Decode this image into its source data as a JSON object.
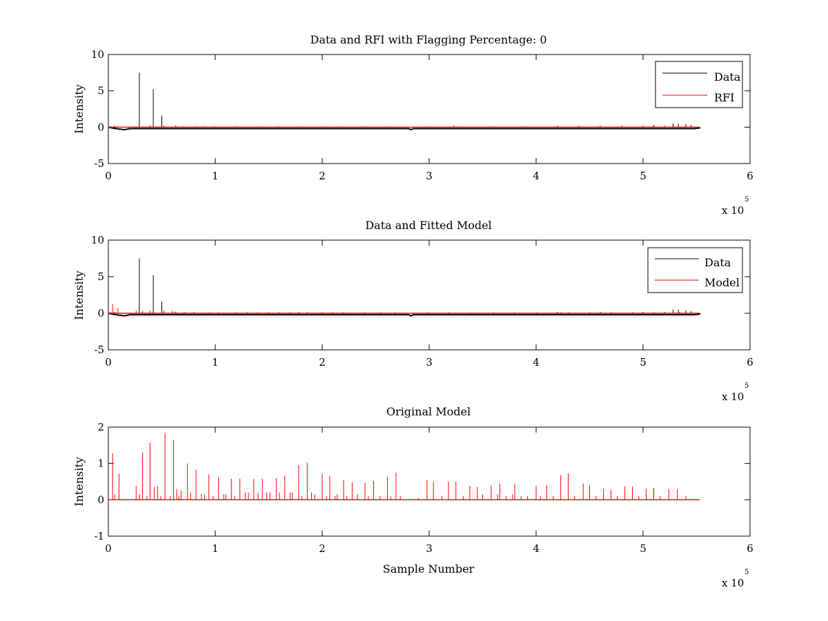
{
  "figure": {
    "background": "#ffffff"
  },
  "chart_data": [
    {
      "type": "line",
      "title": "Data and RFI with Flagging Percentage: 0",
      "xlabel": "",
      "ylabel": "Intensity",
      "xlim": [
        0,
        600000
      ],
      "ylim": [
        -5,
        10
      ],
      "xticks": [
        "0",
        "1",
        "2",
        "3",
        "4",
        "5",
        "6"
      ],
      "yticks": [
        "-5",
        "0",
        "5",
        "10"
      ],
      "xtick_values": [
        0,
        100000,
        200000,
        300000,
        400000,
        500000,
        600000
      ],
      "ytick_values": [
        -5,
        0,
        5,
        10
      ],
      "x_multiplier": {
        "base": "x 10",
        "exponent": "5"
      },
      "grid": false,
      "legend": {
        "position": "top-right",
        "entries": [
          {
            "label": "Data",
            "color": "#000000"
          },
          {
            "label": "RFI",
            "color": "#ff0000"
          }
        ]
      },
      "series": [
        {
          "name": "Data",
          "color": "#000000",
          "baseline": 0,
          "x_end": 553000,
          "dips": [
            [
              5000,
              -0.15
            ],
            [
              15000,
              -0.35
            ],
            [
              20000,
              -0.2
            ],
            [
              281000,
              -0.2
            ],
            [
              283000,
              -0.35
            ],
            [
              285000,
              -0.2
            ],
            [
              548000,
              -0.2
            ],
            [
              553000,
              -0.1
            ]
          ],
          "spikes": [
            [
              2000,
              0.15
            ],
            [
              6000,
              0.2
            ],
            [
              9000,
              0.1
            ],
            [
              29000,
              7.5
            ],
            [
              39000,
              0.2
            ],
            [
              42000,
              5.2
            ],
            [
              50000,
              1.6
            ],
            [
              52000,
              0.2
            ],
            [
              63000,
              0.2
            ],
            [
              70000,
              0.1
            ],
            [
              82000,
              0.1
            ],
            [
              90000,
              0.1
            ],
            [
              100000,
              0.1
            ],
            [
              120000,
              0.1
            ],
            [
              140000,
              0.1
            ],
            [
              160000,
              0.1
            ],
            [
              180000,
              0.1
            ],
            [
              200000,
              0.1
            ],
            [
              220000,
              0.1
            ],
            [
              240000,
              0.1
            ],
            [
              260000,
              0.1
            ],
            [
              300000,
              0.1
            ],
            [
              330000,
              0.1
            ],
            [
              360000,
              0.1
            ],
            [
              390000,
              0.1
            ],
            [
              420000,
              0.2
            ],
            [
              440000,
              0.2
            ],
            [
              460000,
              0.2
            ],
            [
              480000,
              0.2
            ],
            [
              500000,
              0.2
            ],
            [
              510000,
              0.3
            ],
            [
              520000,
              0.2
            ],
            [
              528000,
              0.5
            ],
            [
              533000,
              0.5
            ],
            [
              540000,
              0.4
            ],
            [
              545000,
              0.3
            ]
          ]
        },
        {
          "name": "RFI",
          "color": "#ff0000",
          "baseline": 0,
          "x_end": 553000,
          "spikes": [
            [
              323000,
              0.25
            ]
          ]
        }
      ]
    },
    {
      "type": "line",
      "title": "Data and Fitted Model",
      "xlabel": "",
      "ylabel": "Intensity",
      "xlim": [
        0,
        600000
      ],
      "ylim": [
        -5,
        10
      ],
      "xticks": [
        "0",
        "1",
        "2",
        "3",
        "4",
        "5",
        "6"
      ],
      "yticks": [
        "-5",
        "0",
        "5",
        "10"
      ],
      "xtick_values": [
        0,
        100000,
        200000,
        300000,
        400000,
        500000,
        600000
      ],
      "ytick_values": [
        -5,
        0,
        5,
        10
      ],
      "x_multiplier": {
        "base": "x 10",
        "exponent": "5"
      },
      "grid": false,
      "legend": {
        "position": "top-right",
        "entries": [
          {
            "label": "Data",
            "color": "#000000"
          },
          {
            "label": "Model",
            "color": "#ff0000"
          }
        ]
      },
      "series": [
        {
          "name": "Data",
          "color": "#000000",
          "baseline": 0,
          "x_end": 553000,
          "dips": [
            [
              5000,
              -0.15
            ],
            [
              15000,
              -0.35
            ],
            [
              20000,
              -0.2
            ],
            [
              281000,
              -0.2
            ],
            [
              283000,
              -0.35
            ],
            [
              285000,
              -0.2
            ],
            [
              548000,
              -0.2
            ],
            [
              553000,
              -0.1
            ]
          ],
          "spikes": [
            [
              2000,
              0.15
            ],
            [
              6000,
              0.2
            ],
            [
              9000,
              0.1
            ],
            [
              29000,
              7.5
            ],
            [
              39000,
              0.2
            ],
            [
              42000,
              5.2
            ],
            [
              50000,
              1.6
            ],
            [
              52000,
              0.2
            ],
            [
              63000,
              0.2
            ],
            [
              70000,
              0.1
            ],
            [
              90000,
              0.1
            ],
            [
              120000,
              0.1
            ],
            [
              160000,
              0.1
            ],
            [
              200000,
              0.1
            ],
            [
              240000,
              0.1
            ],
            [
              300000,
              0.1
            ],
            [
              360000,
              0.1
            ],
            [
              420000,
              0.2
            ],
            [
              460000,
              0.2
            ],
            [
              500000,
              0.2
            ],
            [
              520000,
              0.2
            ],
            [
              528000,
              0.5
            ],
            [
              533000,
              0.5
            ],
            [
              540000,
              0.4
            ],
            [
              545000,
              0.3
            ]
          ]
        },
        {
          "name": "Model",
          "color": "#ff0000",
          "baseline": 0,
          "x_end": 553000,
          "spikes": [
            [
              4000,
              1.25
            ],
            [
              9000,
              0.7
            ],
            [
              26000,
              0.35
            ],
            [
              32000,
              0.3
            ],
            [
              39000,
              0.35
            ],
            [
              52000,
              0.4
            ],
            [
              60000,
              0.35
            ],
            [
              72000,
              0.2
            ],
            [
              80000,
              0.2
            ],
            [
              95000,
              0.15
            ],
            [
              103000,
              0.15
            ],
            [
              118000,
              0.15
            ],
            [
              130000,
              0.15
            ],
            [
              140000,
              0.15
            ],
            [
              150000,
              0.15
            ],
            [
              160000,
              0.15
            ],
            [
              170000,
              0.15
            ],
            [
              178000,
              0.2
            ],
            [
              186000,
              0.2
            ],
            [
              200000,
              0.15
            ],
            [
              210000,
              0.15
            ],
            [
              220000,
              0.15
            ],
            [
              240000,
              0.15
            ],
            [
              255000,
              0.15
            ],
            [
              268000,
              0.15
            ],
            [
              298000,
              0.15
            ],
            [
              318000,
              0.15
            ],
            [
              340000,
              0.15
            ],
            [
              360000,
              0.15
            ],
            [
              380000,
              0.15
            ],
            [
              400000,
              0.15
            ],
            [
              423000,
              0.15
            ],
            [
              430000,
              0.15
            ],
            [
              450000,
              0.15
            ],
            [
              470000,
              0.15
            ],
            [
              490000,
              0.15
            ],
            [
              510000,
              0.15
            ],
            [
              528000,
              0.15
            ],
            [
              534000,
              0.15
            ]
          ]
        }
      ]
    },
    {
      "type": "line",
      "title": "Original Model",
      "xlabel": "Sample Number",
      "ylabel": "Intensity",
      "xlim": [
        0,
        600000
      ],
      "ylim": [
        -1,
        2
      ],
      "xticks": [
        "0",
        "1",
        "2",
        "3",
        "4",
        "5",
        "6"
      ],
      "yticks": [
        "-1",
        "0",
        "1",
        "2"
      ],
      "xtick_values": [
        0,
        100000,
        200000,
        300000,
        400000,
        500000,
        600000
      ],
      "ytick_values": [
        -1,
        0,
        1,
        2
      ],
      "x_multiplier": {
        "base": "x 10",
        "exponent": "5"
      },
      "grid": false,
      "legend": null,
      "series": [
        {
          "name": "",
          "color": "#ff0000",
          "baseline": 0,
          "x_end": 553000,
          "spikes": [
            [
              4000,
              1.28
            ],
            [
              6000,
              0.15
            ],
            [
              10000,
              0.72
            ],
            [
              26000,
              0.38
            ],
            [
              29000,
              0.15
            ],
            [
              32000,
              1.3
            ],
            [
              36000,
              0.1
            ],
            [
              39000,
              1.57
            ],
            [
              43000,
              0.35
            ],
            [
              46000,
              0.37
            ],
            [
              49000,
              0.1
            ],
            [
              53000,
              1.84
            ],
            [
              58000,
              0.1
            ],
            [
              61000,
              1.65
            ],
            [
              64000,
              0.3
            ],
            [
              66000,
              0.1
            ],
            [
              68000,
              0.26
            ],
            [
              74000,
              1.0
            ],
            [
              77000,
              0.2
            ],
            [
              82000,
              0.83
            ],
            [
              87000,
              0.15
            ],
            [
              90000,
              0.15
            ],
            [
              94000,
              0.7
            ],
            [
              98000,
              0.1
            ],
            [
              103000,
              0.62
            ],
            [
              108000,
              0.15
            ],
            [
              110000,
              0.15
            ],
            [
              115000,
              0.58
            ],
            [
              118000,
              0.1
            ],
            [
              123000,
              0.58
            ],
            [
              128000,
              0.2
            ],
            [
              131000,
              0.2
            ],
            [
              136000,
              0.57
            ],
            [
              140000,
              0.2
            ],
            [
              144000,
              0.58
            ],
            [
              148000,
              0.2
            ],
            [
              151000,
              0.2
            ],
            [
              157000,
              0.6
            ],
            [
              160000,
              0.2
            ],
            [
              165000,
              0.67
            ],
            [
              170000,
              0.2
            ],
            [
              172000,
              0.2
            ],
            [
              178000,
              0.95
            ],
            [
              181000,
              0.1
            ],
            [
              186000,
              1.02
            ],
            [
              190000,
              0.2
            ],
            [
              193000,
              0.15
            ],
            [
              200000,
              0.72
            ],
            [
              204000,
              0.1
            ],
            [
              207000,
              0.65
            ],
            [
              212000,
              0.1
            ],
            [
              214000,
              0.15
            ],
            [
              220000,
              0.55
            ],
            [
              223000,
              0.1
            ],
            [
              228000,
              0.48
            ],
            [
              233000,
              0.15
            ],
            [
              240000,
              0.47
            ],
            [
              243000,
              0.1
            ],
            [
              248000,
              0.52
            ],
            [
              254000,
              0.1
            ],
            [
              261000,
              0.63
            ],
            [
              264000,
              0.1
            ],
            [
              269000,
              0.75
            ],
            [
              273000,
              0.1
            ],
            [
              290000,
              0.05
            ],
            [
              298000,
              0.55
            ],
            [
              304000,
              0.5
            ],
            [
              312000,
              0.1
            ],
            [
              318000,
              0.5
            ],
            [
              325000,
              0.5
            ],
            [
              332000,
              0.1
            ],
            [
              338000,
              0.38
            ],
            [
              345000,
              0.35
            ],
            [
              350000,
              0.15
            ],
            [
              358000,
              0.4
            ],
            [
              364000,
              0.15
            ],
            [
              366000,
              0.45
            ],
            [
              372000,
              0.1
            ],
            [
              378000,
              0.15
            ],
            [
              380000,
              0.45
            ],
            [
              386000,
              0.1
            ],
            [
              392000,
              0.1
            ],
            [
              400000,
              0.38
            ],
            [
              404000,
              0.1
            ],
            [
              410000,
              0.4
            ],
            [
              416000,
              0.1
            ],
            [
              423000,
              0.68
            ],
            [
              430000,
              0.73
            ],
            [
              436000,
              0.1
            ],
            [
              444000,
              0.45
            ],
            [
              450000,
              0.4
            ],
            [
              456000,
              0.1
            ],
            [
              463000,
              0.3
            ],
            [
              470000,
              0.27
            ],
            [
              476000,
              0.1
            ],
            [
              483000,
              0.37
            ],
            [
              490000,
              0.37
            ],
            [
              496000,
              0.1
            ],
            [
              503000,
              0.3
            ],
            [
              510000,
              0.33
            ],
            [
              516000,
              0.1
            ],
            [
              524000,
              0.3
            ],
            [
              532000,
              0.28
            ],
            [
              540000,
              0.1
            ]
          ]
        }
      ]
    }
  ]
}
